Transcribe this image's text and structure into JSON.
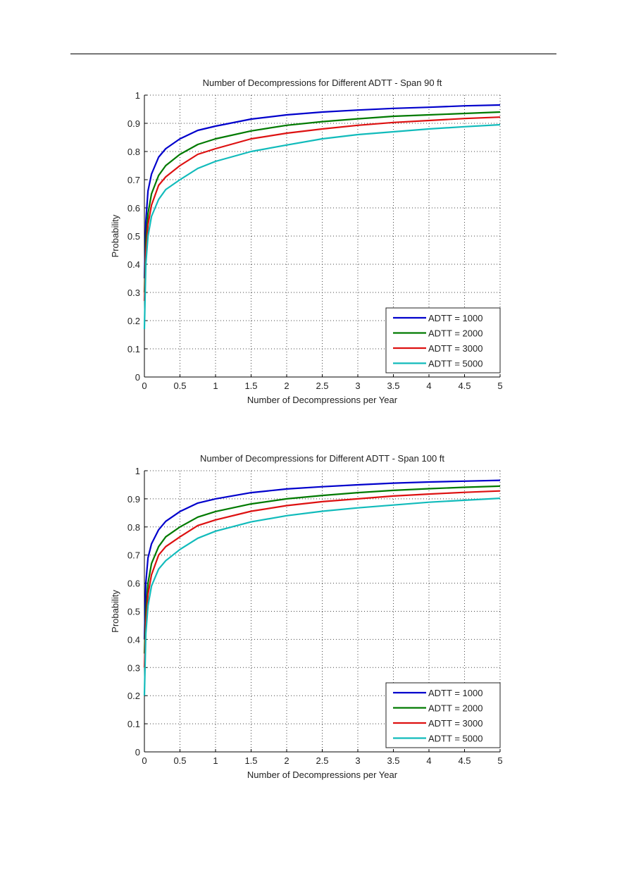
{
  "chart_data": [
    {
      "type": "line",
      "title": "Number of Decompressions for Different ADTT - Span 90 ft",
      "xlabel": "Number of Decompressions per Year",
      "ylabel": "Probability",
      "xlim": [
        0,
        5
      ],
      "ylim": [
        0,
        1
      ],
      "xticks": [
        "0",
        "0.5",
        "1",
        "1.5",
        "2",
        "2.5",
        "3",
        "3.5",
        "4",
        "4.5",
        "5"
      ],
      "yticks": [
        "0",
        "0.1",
        "0.2",
        "0.3",
        "0.4",
        "0.5",
        "0.6",
        "0.7",
        "0.8",
        "0.9",
        "1"
      ],
      "grid": true,
      "legend_position": "bottom-right",
      "x": [
        0,
        0.02,
        0.05,
        0.1,
        0.2,
        0.3,
        0.5,
        0.75,
        1,
        1.5,
        2,
        2.5,
        3,
        3.5,
        4,
        4.5,
        5
      ],
      "series": [
        {
          "name": "ADTT = 1000",
          "color": "#0000cc",
          "values": [
            0.35,
            0.55,
            0.66,
            0.72,
            0.78,
            0.81,
            0.845,
            0.875,
            0.89,
            0.915,
            0.93,
            0.94,
            0.947,
            0.953,
            0.957,
            0.962,
            0.965
          ]
        },
        {
          "name": "ADTT = 2000",
          "color": "#007a00",
          "values": [
            0.3,
            0.48,
            0.58,
            0.65,
            0.715,
            0.75,
            0.79,
            0.825,
            0.845,
            0.873,
            0.893,
            0.906,
            0.916,
            0.925,
            0.93,
            0.935,
            0.94
          ]
        },
        {
          "name": "ADTT = 3000",
          "color": "#dd1111",
          "values": [
            0.27,
            0.44,
            0.54,
            0.61,
            0.68,
            0.71,
            0.75,
            0.79,
            0.81,
            0.845,
            0.865,
            0.88,
            0.893,
            0.903,
            0.91,
            0.917,
            0.922
          ]
        },
        {
          "name": "ADTT = 5000",
          "color": "#11bbbb",
          "values": [
            0.17,
            0.4,
            0.5,
            0.57,
            0.63,
            0.665,
            0.7,
            0.74,
            0.765,
            0.8,
            0.823,
            0.845,
            0.86,
            0.87,
            0.88,
            0.888,
            0.895
          ]
        }
      ]
    },
    {
      "type": "line",
      "title": "Number of Decompressions for Different ADTT - Span 100 ft",
      "xlabel": "Number of Decompressions per Year",
      "ylabel": "Probability",
      "xlim": [
        0,
        5
      ],
      "ylim": [
        0,
        1
      ],
      "xticks": [
        "0",
        "0.5",
        "1",
        "1.5",
        "2",
        "2.5",
        "3",
        "3.5",
        "4",
        "4.5",
        "5"
      ],
      "yticks": [
        "0",
        "0.1",
        "0.2",
        "0.3",
        "0.4",
        "0.5",
        "0.6",
        "0.7",
        "0.8",
        "0.9",
        "1"
      ],
      "grid": true,
      "legend_position": "bottom-right",
      "x": [
        0,
        0.02,
        0.05,
        0.1,
        0.2,
        0.3,
        0.5,
        0.75,
        1,
        1.5,
        2,
        2.5,
        3,
        3.5,
        4,
        4.5,
        5
      ],
      "series": [
        {
          "name": "ADTT = 1000",
          "color": "#0000cc",
          "values": [
            0.4,
            0.6,
            0.69,
            0.74,
            0.79,
            0.82,
            0.855,
            0.885,
            0.9,
            0.922,
            0.935,
            0.943,
            0.95,
            0.956,
            0.96,
            0.963,
            0.966
          ]
        },
        {
          "name": "ADTT = 2000",
          "color": "#007a00",
          "values": [
            0.35,
            0.5,
            0.6,
            0.67,
            0.73,
            0.765,
            0.8,
            0.835,
            0.855,
            0.882,
            0.9,
            0.912,
            0.922,
            0.93,
            0.936,
            0.941,
            0.945
          ]
        },
        {
          "name": "ADTT = 3000",
          "color": "#dd1111",
          "values": [
            0.3,
            0.46,
            0.56,
            0.63,
            0.7,
            0.73,
            0.765,
            0.805,
            0.825,
            0.856,
            0.876,
            0.89,
            0.9,
            0.91,
            0.917,
            0.923,
            0.928
          ]
        },
        {
          "name": "ADTT = 5000",
          "color": "#11bbbb",
          "values": [
            0.2,
            0.42,
            0.52,
            0.59,
            0.65,
            0.68,
            0.72,
            0.76,
            0.785,
            0.818,
            0.84,
            0.856,
            0.868,
            0.878,
            0.888,
            0.895,
            0.902
          ]
        }
      ]
    }
  ]
}
